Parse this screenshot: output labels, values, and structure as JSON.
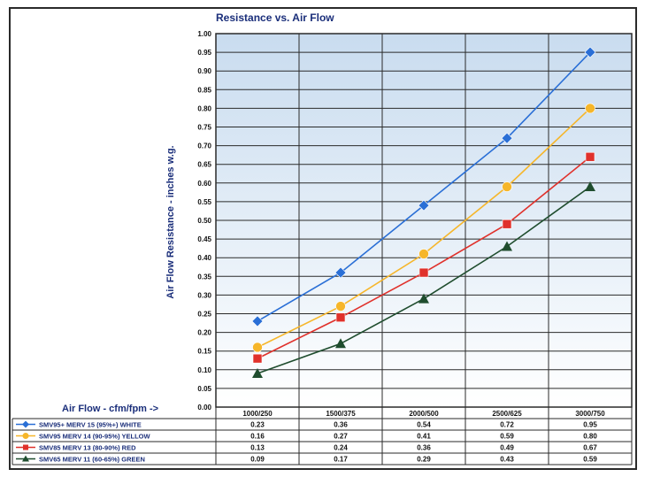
{
  "chart_data": {
    "type": "line",
    "title": "Resistance vs. Air Flow",
    "ylabel": "Air Flow Resistance - inches w.g.",
    "xlabel": "Air Flow - cfm/fpm ->",
    "ylim": [
      0,
      1.0
    ],
    "yticks": [
      "0.00",
      "0.05",
      "0.10",
      "0.15",
      "0.20",
      "0.25",
      "0.30",
      "0.35",
      "0.40",
      "0.45",
      "0.50",
      "0.55",
      "0.60",
      "0.65",
      "0.70",
      "0.75",
      "0.80",
      "0.85",
      "0.90",
      "0.95",
      "1.00"
    ],
    "categories": [
      "1000/250",
      "1500/375",
      "2000/500",
      "2500/625",
      "3000/750"
    ],
    "grid": true,
    "legend_position": "table below chart",
    "series": [
      {
        "name": "SMV95+  MERV 15  (95%+)  WHITE",
        "color": "#2a6fd6",
        "marker": "diamond",
        "values": [
          0.23,
          0.36,
          0.54,
          0.72,
          0.95
        ],
        "labels": [
          "0.23",
          "0.36",
          "0.54",
          "0.72",
          "0.95"
        ]
      },
      {
        "name": "SMV95  MERV 14  (90-95%) YELLOW",
        "color": "#f6b62a",
        "marker": "circle",
        "values": [
          0.16,
          0.27,
          0.41,
          0.59,
          0.8
        ],
        "labels": [
          "0.16",
          "0.27",
          "0.41",
          "0.59",
          "0.80"
        ]
      },
      {
        "name": "SMV85  MERV 13  (80-90%) RED",
        "color": "#e0312b",
        "marker": "square",
        "values": [
          0.13,
          0.24,
          0.36,
          0.49,
          0.67
        ],
        "labels": [
          "0.13",
          "0.24",
          "0.36",
          "0.49",
          "0.67"
        ]
      },
      {
        "name": "SMV65  MERV 11  (60-65%) GREEN",
        "color": "#1f4d2e",
        "marker": "triangle",
        "values": [
          0.09,
          0.17,
          0.29,
          0.43,
          0.59
        ],
        "labels": [
          "0.09",
          "0.17",
          "0.29",
          "0.43",
          "0.59"
        ]
      }
    ]
  }
}
